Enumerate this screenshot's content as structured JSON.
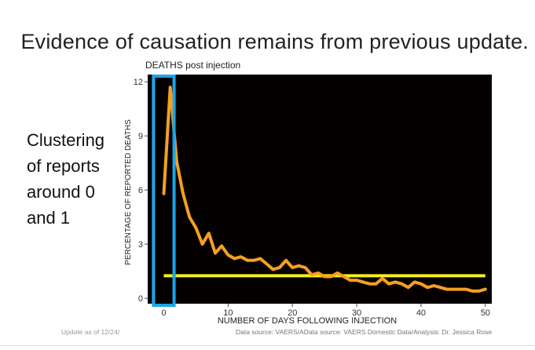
{
  "slide": {
    "title": "Evidence of causation remains from previous update.",
    "side_lines": [
      "Clustering",
      "of reports",
      "around 0",
      "and 1"
    ],
    "footer_left": "Update as of 12/24/",
    "footer_right": "Data source: VAERS/AData source: VAERS Domestic Data/Analysis: Dr. Jessica Rose"
  },
  "colors": {
    "plot_bg": "#050000",
    "line": "#f5a01f",
    "baseline": "#f5f01a",
    "highlight": "#1aa6e8"
  },
  "chart_data": {
    "type": "line",
    "title": "DEATHS post injection",
    "xlabel": "NUMBER OF DAYS FOLLOWING INJECTION",
    "ylabel": "PERCENTAGE OF REPORTED DEATHS",
    "xlim": [
      -2.5,
      51
    ],
    "ylim": [
      -0.3,
      12.4
    ],
    "x_ticks": [
      0,
      10,
      20,
      30,
      40,
      50
    ],
    "y_ticks": [
      0,
      3,
      6,
      9,
      12
    ],
    "series": [
      {
        "x": [
          0,
          1,
          2,
          3,
          4,
          5,
          6,
          7,
          8,
          9,
          10,
          11,
          12,
          13,
          14,
          15,
          16,
          17,
          18,
          19,
          20,
          21,
          22,
          23,
          24,
          25,
          26,
          27,
          28,
          29,
          30,
          31,
          32,
          33,
          34,
          35,
          36,
          37,
          38,
          39,
          40,
          41,
          42,
          43,
          44,
          45,
          46,
          47,
          48,
          49,
          50
        ],
        "values": [
          5.8,
          11.7,
          7.6,
          5.8,
          4.5,
          3.9,
          3.0,
          3.6,
          2.5,
          2.9,
          2.4,
          2.2,
          2.3,
          2.1,
          2.1,
          2.2,
          1.9,
          1.6,
          1.7,
          2.1,
          1.7,
          1.8,
          1.7,
          1.3,
          1.4,
          1.2,
          1.2,
          1.4,
          1.2,
          1.0,
          1.0,
          0.9,
          0.8,
          0.8,
          1.1,
          0.8,
          0.9,
          0.8,
          0.6,
          0.9,
          0.8,
          0.6,
          0.7,
          0.6,
          0.5,
          0.5,
          0.5,
          0.5,
          0.4,
          0.4,
          0.5
        ]
      }
    ],
    "reference_line": {
      "y": 1.25,
      "x_from": 0,
      "x_to": 50
    },
    "highlight_region": {
      "x_from": -1.6,
      "x_to": 1.6
    }
  }
}
